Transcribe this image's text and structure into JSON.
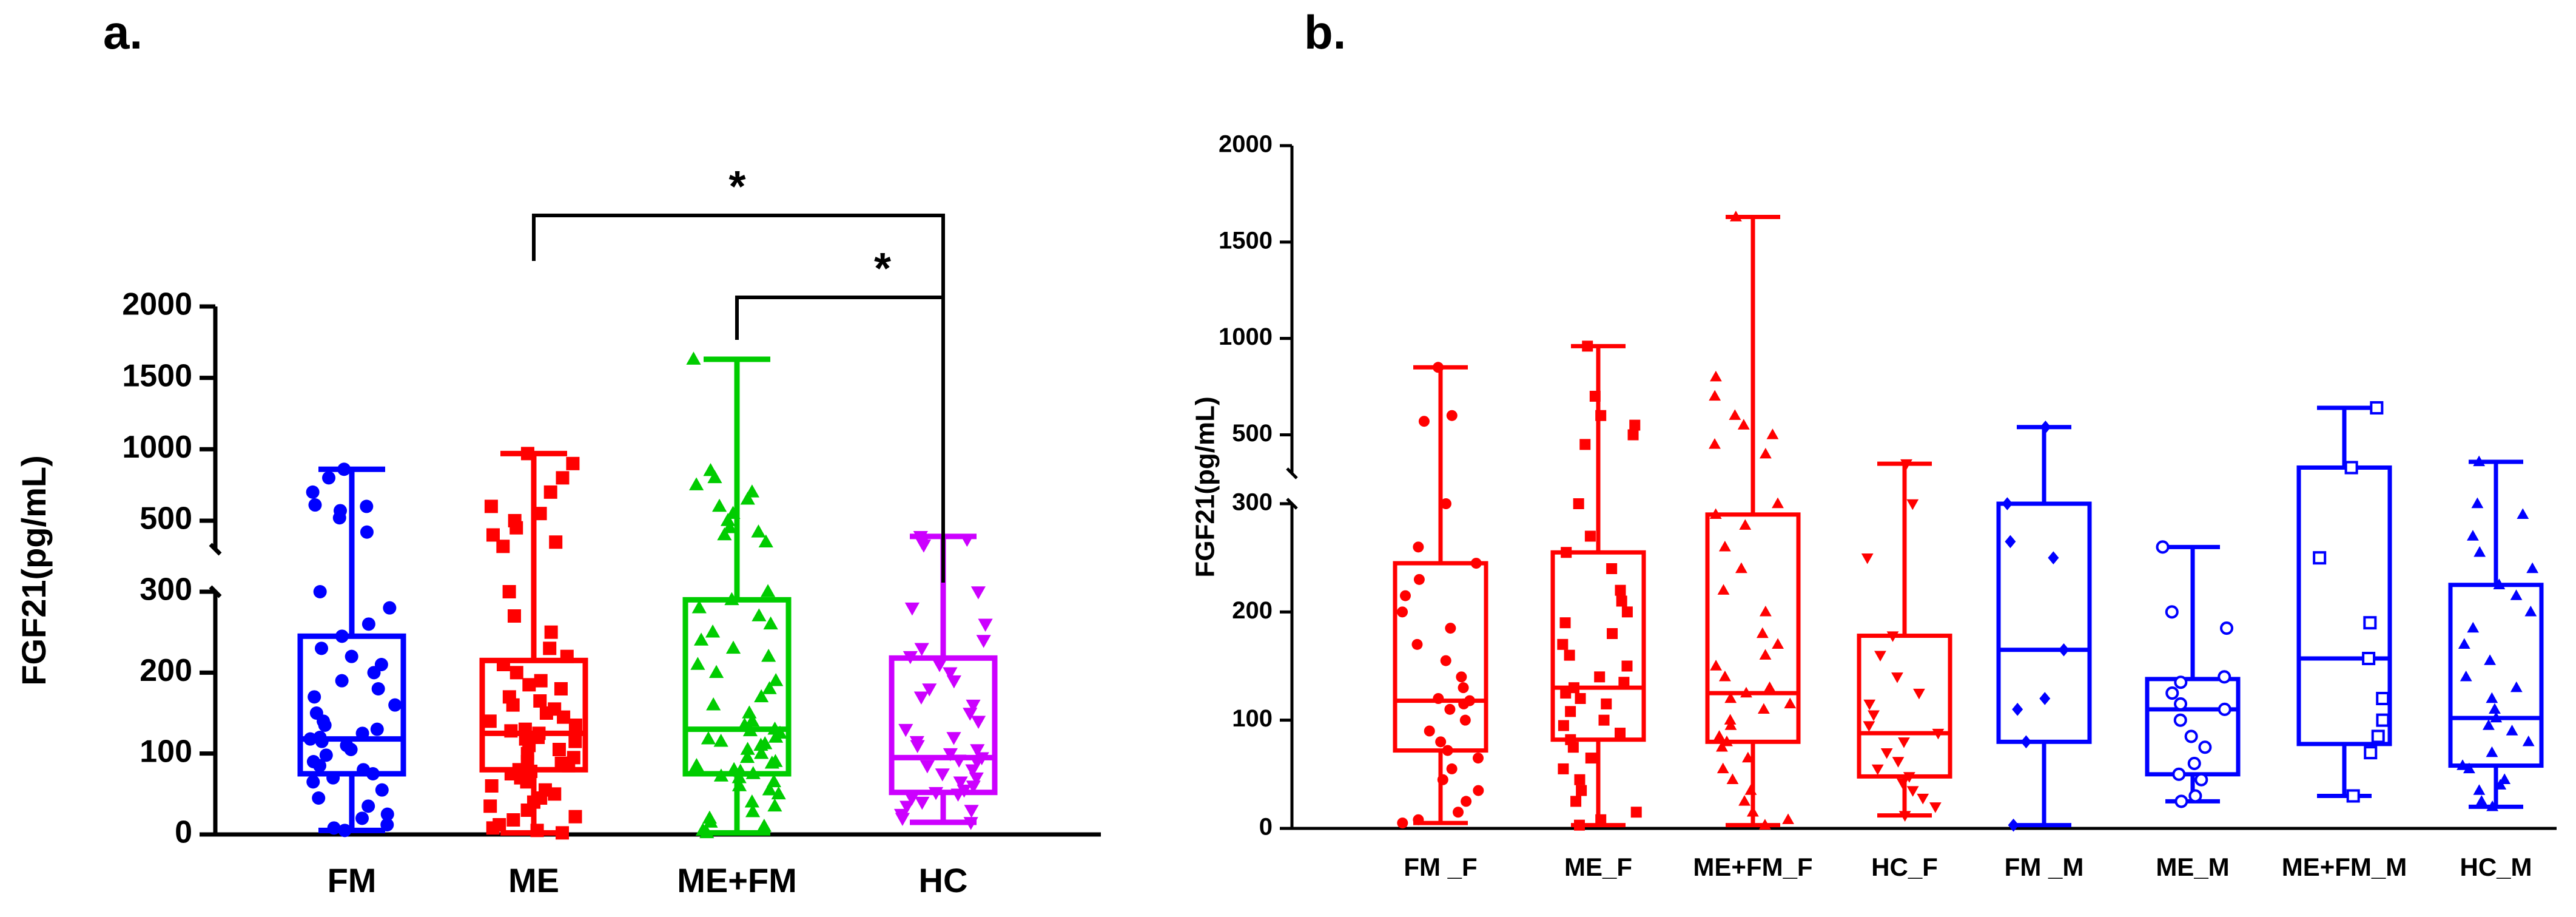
{
  "chart_data": [
    {
      "panel_label": "a.",
      "type": "box",
      "title": "",
      "xlabel": "",
      "ylabel": "FGF21(pg/mL)",
      "y_axis_break": {
        "lower": [
          0,
          300
        ],
        "upper": [
          300,
          2000
        ]
      },
      "lower_ticks": [
        "0",
        "100",
        "200",
        "300"
      ],
      "upper_ticks": [
        "500",
        "1000",
        "1500",
        "2000"
      ],
      "categories": [
        "FM",
        "ME",
        "ME+FM",
        "HC"
      ],
      "series": [
        {
          "name": "FM",
          "color": "#0000ff",
          "marker": "circle",
          "min": 5,
          "q1": 75,
          "median": 118,
          "q3": 245,
          "max": 860,
          "points": [
            5,
            8,
            12,
            20,
            25,
            35,
            45,
            55,
            65,
            70,
            75,
            80,
            85,
            90,
            98,
            105,
            110,
            115,
            118,
            120,
            125,
            130,
            135,
            140,
            150,
            160,
            170,
            180,
            190,
            200,
            210,
            220,
            230,
            245,
            260,
            280,
            300,
            420,
            520,
            570,
            600,
            610,
            700,
            800,
            860
          ]
        },
        {
          "name": "ME",
          "color": "#ff0000",
          "marker": "square",
          "min": 2,
          "q1": 80,
          "median": 125,
          "q3": 215,
          "max": 970,
          "points": [
            2,
            5,
            8,
            12,
            18,
            22,
            30,
            35,
            40,
            45,
            50,
            55,
            60,
            65,
            70,
            75,
            78,
            80,
            85,
            88,
            90,
            95,
            100,
            105,
            110,
            115,
            118,
            120,
            125,
            128,
            130,
            135,
            140,
            145,
            150,
            155,
            160,
            165,
            170,
            180,
            185,
            190,
            200,
            210,
            220,
            230,
            250,
            270,
            300,
            320,
            350,
            400,
            450,
            500,
            550,
            600,
            700,
            800,
            900,
            970
          ]
        },
        {
          "name": "ME+FM",
          "color": "#00cc00",
          "marker": "triangle-up",
          "min": 2,
          "q1": 75,
          "median": 130,
          "q3": 290,
          "max": 1630,
          "points": [
            2,
            5,
            10,
            15,
            20,
            28,
            35,
            40,
            50,
            55,
            60,
            65,
            70,
            72,
            75,
            78,
            80,
            85,
            88,
            90,
            95,
            100,
            105,
            110,
            112,
            115,
            118,
            120,
            125,
            128,
            130,
            135,
            140,
            150,
            160,
            170,
            180,
            190,
            200,
            210,
            220,
            230,
            240,
            250,
            260,
            270,
            280,
            290,
            300,
            350,
            400,
            420,
            450,
            500,
            550,
            600,
            650,
            700,
            750,
            800,
            850,
            1630
          ]
        },
        {
          "name": "HC",
          "color": "#cc00ff",
          "marker": "triangle-down",
          "min": 15,
          "q1": 52,
          "median": 95,
          "q3": 218,
          "max": 390,
          "points": [
            15,
            20,
            25,
            30,
            35,
            40,
            45,
            50,
            52,
            55,
            60,
            65,
            70,
            75,
            80,
            85,
            90,
            92,
            95,
            100,
            105,
            110,
            115,
            120,
            130,
            140,
            150,
            160,
            170,
            180,
            190,
            200,
            210,
            220,
            230,
            240,
            260,
            280,
            300,
            330,
            350,
            370,
            390
          ]
        }
      ],
      "annotations": [
        {
          "from": "ME",
          "to": "HC",
          "label": "*"
        },
        {
          "from": "ME+FM",
          "to": "HC",
          "label": "*"
        }
      ]
    },
    {
      "panel_label": "b.",
      "type": "box",
      "title": "",
      "xlabel": "",
      "ylabel": "FGF21(pg/mL)",
      "y_axis_break": {
        "lower": [
          0,
          300
        ],
        "upper": [
          300,
          2000
        ]
      },
      "lower_ticks": [
        "0",
        "100",
        "200",
        "300"
      ],
      "upper_ticks": [
        "500",
        "1000",
        "1500",
        "2000"
      ],
      "categories": [
        "FM _F",
        "ME_F",
        "ME+FM_F",
        "HC_F",
        "FM _M",
        "ME_M",
        "ME+FM_M",
        "HC_M"
      ],
      "series": [
        {
          "name": "FM _F",
          "color": "#ff0000",
          "marker": "circle",
          "style": "filled",
          "min": 5,
          "q1": 72,
          "median": 118,
          "q3": 245,
          "max": 850,
          "points": [
            5,
            8,
            15,
            25,
            35,
            45,
            55,
            65,
            72,
            80,
            90,
            100,
            110,
            115,
            118,
            120,
            130,
            140,
            155,
            170,
            185,
            200,
            215,
            230,
            245,
            260,
            300,
            570,
            600,
            850
          ]
        },
        {
          "name": "ME_F",
          "color": "#ff0000",
          "marker": "square",
          "style": "filled",
          "min": 3,
          "q1": 82,
          "median": 130,
          "q3": 255,
          "max": 960,
          "points": [
            3,
            8,
            15,
            25,
            35,
            45,
            55,
            65,
            75,
            82,
            88,
            95,
            100,
            108,
            115,
            120,
            125,
            130,
            135,
            140,
            150,
            160,
            170,
            180,
            190,
            200,
            210,
            220,
            240,
            255,
            270,
            300,
            450,
            500,
            550,
            600,
            700,
            960
          ]
        },
        {
          "name": "ME+FM_F",
          "color": "#ff0000",
          "marker": "triangle-up",
          "style": "filled",
          "min": 3,
          "q1": 80,
          "median": 125,
          "q3": 290,
          "max": 1630,
          "points": [
            3,
            8,
            15,
            25,
            35,
            45,
            55,
            65,
            75,
            80,
            85,
            95,
            100,
            110,
            115,
            120,
            125,
            130,
            140,
            150,
            160,
            170,
            180,
            200,
            220,
            240,
            260,
            280,
            290,
            300,
            400,
            450,
            500,
            550,
            600,
            700,
            800,
            1630
          ]
        },
        {
          "name": "HC_F",
          "color": "#ff0000",
          "marker": "triangle-down",
          "style": "filled",
          "min": 12,
          "q1": 48,
          "median": 88,
          "q3": 178,
          "max": 350,
          "points": [
            12,
            20,
            28,
            35,
            42,
            48,
            55,
            62,
            70,
            80,
            88,
            95,
            105,
            115,
            125,
            140,
            160,
            178,
            250,
            300,
            350
          ]
        },
        {
          "name": "FM _M",
          "color": "#0000ff",
          "marker": "diamond",
          "style": "filled",
          "min": 3,
          "q1": 80,
          "median": 165,
          "q3": 300,
          "max": 540,
          "points": [
            3,
            80,
            110,
            120,
            165,
            250,
            265,
            300,
            540
          ]
        },
        {
          "name": "ME_M",
          "color": "#0000ff",
          "marker": "circle",
          "style": "open",
          "min": 25,
          "q1": 50,
          "median": 110,
          "q3": 138,
          "max": 260,
          "points": [
            25,
            30,
            45,
            50,
            60,
            75,
            85,
            100,
            110,
            115,
            125,
            135,
            140,
            185,
            200,
            260
          ]
        },
        {
          "name": "ME+FM_M",
          "color": "#0000ff",
          "marker": "square",
          "style": "open",
          "min": 30,
          "q1": 78,
          "median": 157,
          "q3": 330,
          "max": 640,
          "points": [
            30,
            70,
            85,
            100,
            120,
            157,
            190,
            250,
            330,
            640
          ]
        },
        {
          "name": "HC_M",
          "color": "#0000ff",
          "marker": "triangle-up",
          "style": "filled",
          "min": 20,
          "q1": 58,
          "median": 102,
          "q3": 225,
          "max": 360,
          "points": [
            20,
            25,
            35,
            40,
            45,
            55,
            58,
            70,
            80,
            90,
            95,
            102,
            110,
            120,
            130,
            140,
            155,
            170,
            185,
            200,
            215,
            225,
            240,
            255,
            270,
            290,
            300,
            360
          ]
        }
      ],
      "annotations": []
    }
  ]
}
